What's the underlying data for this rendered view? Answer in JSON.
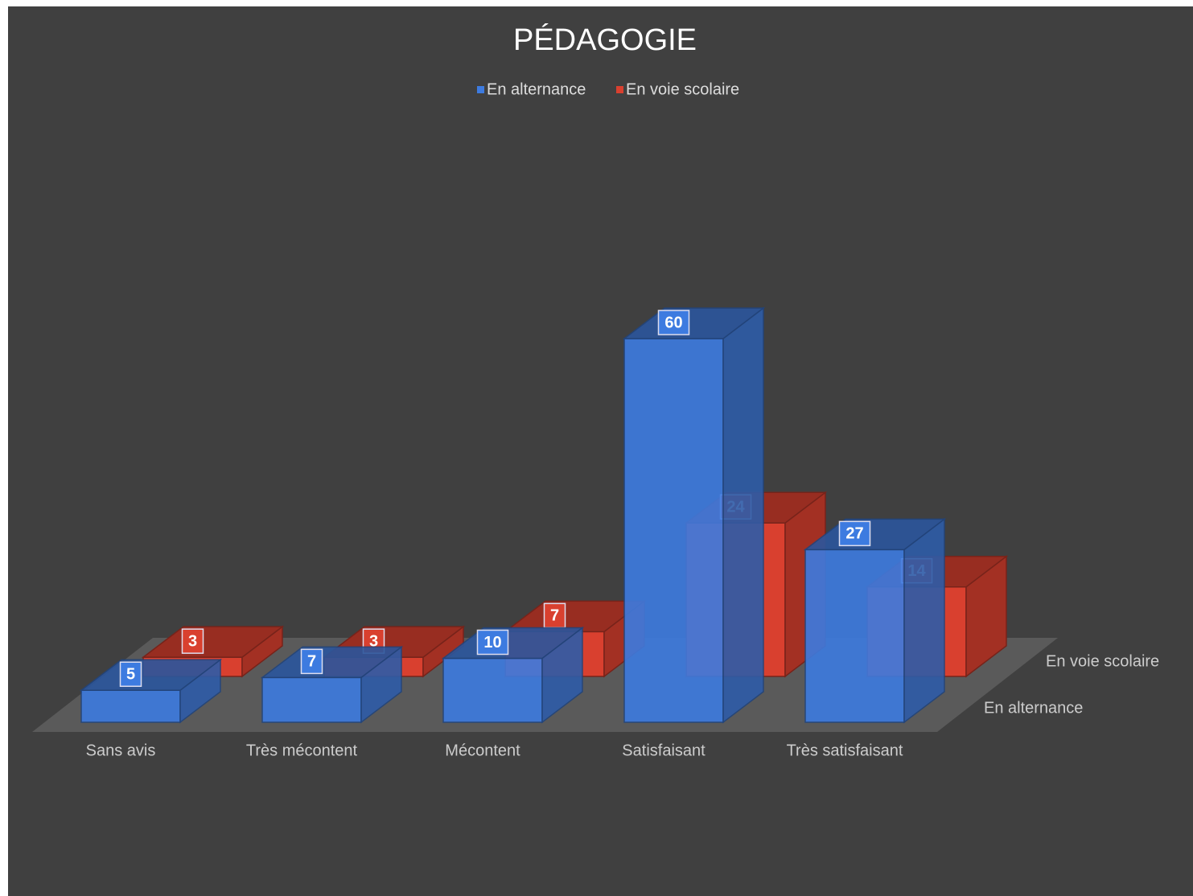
{
  "chart_data": {
    "type": "bar3d",
    "title": "PÉDAGOGIE",
    "categories": [
      "Sans avis",
      "Très mécontent",
      "Mécontent",
      "Satisfaisant",
      "Très satisfaisant"
    ],
    "series": [
      {
        "name": "En alternance",
        "color": "#3d7be0",
        "values": [
          5,
          7,
          10,
          60,
          27
        ]
      },
      {
        "name": "En voie scolaire",
        "color": "#d9402f",
        "values": [
          3,
          3,
          7,
          24,
          14
        ]
      }
    ],
    "legend": "top"
  }
}
